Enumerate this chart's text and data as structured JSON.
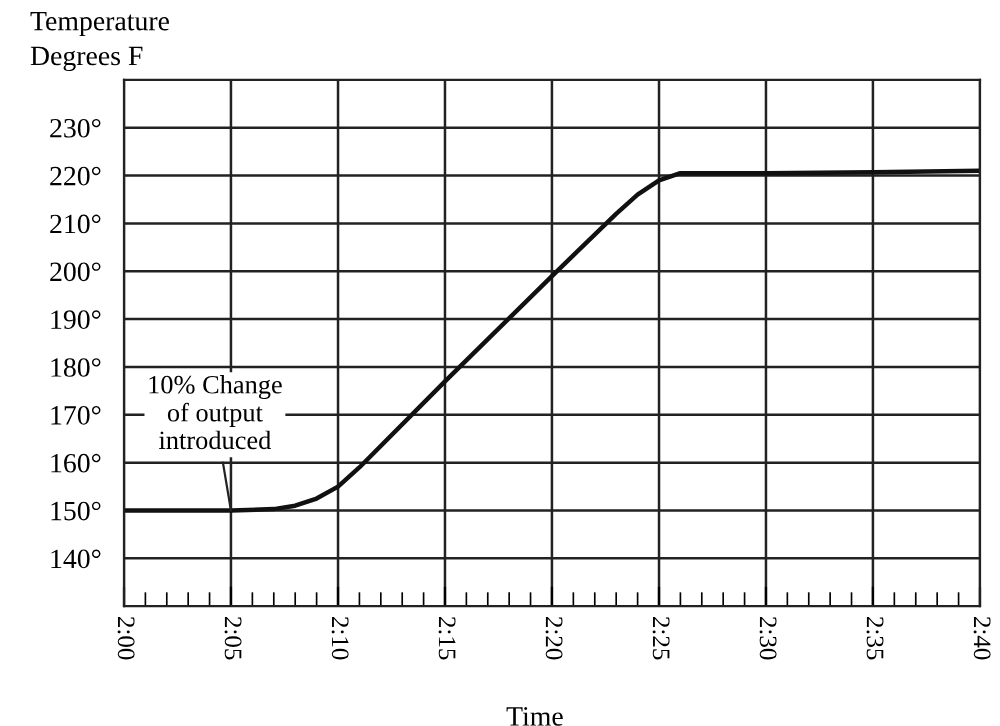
{
  "chart_data": {
    "type": "line",
    "xlabel": "Time",
    "ylabel": "Temperature\nDegrees F",
    "x": [
      2.0,
      2.0833,
      2.1167,
      2.1333,
      2.15,
      2.1667,
      2.1833,
      2.25,
      2.3333,
      2.3833,
      2.4,
      2.4167,
      2.4333,
      2.5,
      2.5833,
      2.6667
    ],
    "values": [
      150,
      150,
      150.3,
      151,
      152.5,
      155,
      159,
      177,
      199,
      212,
      216,
      219,
      220.5,
      220.5,
      220.7,
      221
    ],
    "color": "#111111",
    "line_style": "solid",
    "marker": "none",
    "grid": true,
    "xlim": [
      2.0,
      2.6667
    ],
    "ylim": [
      130,
      240
    ],
    "xticks": [
      {
        "value": 2.0,
        "label": "2:00"
      },
      {
        "value": 2.0833,
        "label": "2:05"
      },
      {
        "value": 2.1667,
        "label": "2:10"
      },
      {
        "value": 2.25,
        "label": "2:15"
      },
      {
        "value": 2.3333,
        "label": "2:20"
      },
      {
        "value": 2.4167,
        "label": "2:25"
      },
      {
        "value": 2.5,
        "label": "2:30"
      },
      {
        "value": 2.5833,
        "label": "2:35"
      },
      {
        "value": 2.6667,
        "label": "2:40"
      }
    ],
    "yticks": [
      {
        "value": 140,
        "label": "140°"
      },
      {
        "value": 150,
        "label": "150°"
      },
      {
        "value": 160,
        "label": "160°"
      },
      {
        "value": 170,
        "label": "170°"
      },
      {
        "value": 180,
        "label": "180°"
      },
      {
        "value": 190,
        "label": "190°"
      },
      {
        "value": 200,
        "label": "200°"
      },
      {
        "value": 210,
        "label": "210°"
      },
      {
        "value": 220,
        "label": "220°"
      },
      {
        "value": 230,
        "label": "230°"
      }
    ],
    "annotations": [
      {
        "text": "10% Change\nof output\nintroduced",
        "x": 2.0833,
        "y": 150
      }
    ]
  }
}
